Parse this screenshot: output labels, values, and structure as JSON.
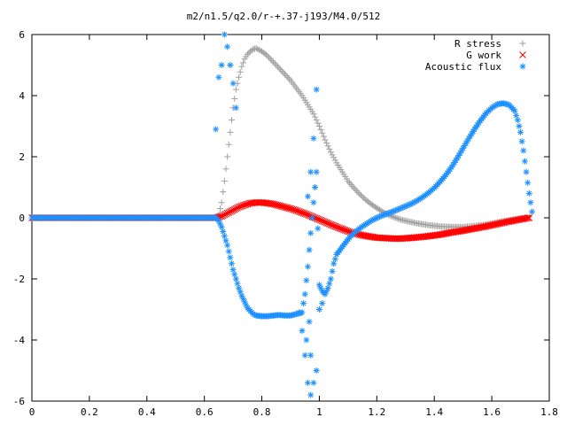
{
  "chart_data": {
    "type": "scatter",
    "title": "m2/n1.5/q2.0/r-+.37-j193/M4.0/512",
    "xlabel": "",
    "ylabel": "",
    "xlim": [
      0,
      1.8
    ],
    "ylim": [
      -6,
      6
    ],
    "x_ticks": [
      "0",
      "0.2",
      "0.4",
      "0.6",
      "0.8",
      "1",
      "1.2",
      "1.4",
      "1.6",
      "1.8"
    ],
    "y_ticks": [
      "6",
      "4",
      "2",
      "0",
      "-2",
      "-4",
      "-6"
    ],
    "grid": false,
    "legend_position": "top-right",
    "series": [
      {
        "name": "R stress",
        "marker": "plus",
        "color": "#a0a0a0",
        "points": [
          [
            0.0,
            0
          ],
          [
            0.1,
            0
          ],
          [
            0.2,
            0
          ],
          [
            0.3,
            0
          ],
          [
            0.4,
            0
          ],
          [
            0.5,
            0
          ],
          [
            0.6,
            0
          ],
          [
            0.64,
            0
          ],
          [
            0.65,
            0.1
          ],
          [
            0.66,
            0.5
          ],
          [
            0.67,
            1.2
          ],
          [
            0.68,
            2.0
          ],
          [
            0.69,
            2.8
          ],
          [
            0.7,
            3.6
          ],
          [
            0.71,
            4.2
          ],
          [
            0.72,
            4.6
          ],
          [
            0.73,
            4.95
          ],
          [
            0.74,
            5.2
          ],
          [
            0.75,
            5.35
          ],
          [
            0.76,
            5.45
          ],
          [
            0.77,
            5.52
          ],
          [
            0.78,
            5.55
          ],
          [
            0.79,
            5.5
          ],
          [
            0.8,
            5.45
          ],
          [
            0.82,
            5.3
          ],
          [
            0.84,
            5.1
          ],
          [
            0.86,
            4.9
          ],
          [
            0.88,
            4.7
          ],
          [
            0.9,
            4.5
          ],
          [
            0.92,
            4.25
          ],
          [
            0.94,
            4.0
          ],
          [
            0.96,
            3.7
          ],
          [
            0.98,
            3.4
          ],
          [
            1.0,
            3.0
          ],
          [
            1.02,
            2.55
          ],
          [
            1.04,
            2.15
          ],
          [
            1.06,
            1.8
          ],
          [
            1.08,
            1.5
          ],
          [
            1.1,
            1.2
          ],
          [
            1.12,
            0.98
          ],
          [
            1.14,
            0.78
          ],
          [
            1.16,
            0.6
          ],
          [
            1.18,
            0.45
          ],
          [
            1.2,
            0.32
          ],
          [
            1.22,
            0.2
          ],
          [
            1.24,
            0.1
          ],
          [
            1.26,
            0.02
          ],
          [
            1.28,
            -0.05
          ],
          [
            1.3,
            -0.1
          ],
          [
            1.34,
            -0.18
          ],
          [
            1.38,
            -0.24
          ],
          [
            1.42,
            -0.28
          ],
          [
            1.46,
            -0.3
          ],
          [
            1.5,
            -0.3
          ],
          [
            1.54,
            -0.27
          ],
          [
            1.58,
            -0.22
          ],
          [
            1.62,
            -0.15
          ],
          [
            1.66,
            -0.08
          ],
          [
            1.7,
            -0.02
          ],
          [
            1.73,
            0.02
          ]
        ]
      },
      {
        "name": "G work",
        "marker": "cross",
        "color": "#ff0000",
        "points": [
          [
            0.0,
            0
          ],
          [
            0.1,
            0
          ],
          [
            0.2,
            0
          ],
          [
            0.3,
            0
          ],
          [
            0.4,
            0
          ],
          [
            0.5,
            0
          ],
          [
            0.6,
            0
          ],
          [
            0.64,
            0
          ],
          [
            0.66,
            0.05
          ],
          [
            0.68,
            0.15
          ],
          [
            0.7,
            0.25
          ],
          [
            0.72,
            0.35
          ],
          [
            0.74,
            0.42
          ],
          [
            0.76,
            0.48
          ],
          [
            0.78,
            0.5
          ],
          [
            0.8,
            0.5
          ],
          [
            0.82,
            0.48
          ],
          [
            0.84,
            0.45
          ],
          [
            0.86,
            0.4
          ],
          [
            0.88,
            0.35
          ],
          [
            0.9,
            0.3
          ],
          [
            0.92,
            0.24
          ],
          [
            0.94,
            0.17
          ],
          [
            0.96,
            0.1
          ],
          [
            0.98,
            0.02
          ],
          [
            1.0,
            -0.06
          ],
          [
            1.02,
            -0.14
          ],
          [
            1.04,
            -0.22
          ],
          [
            1.06,
            -0.3
          ],
          [
            1.08,
            -0.37
          ],
          [
            1.1,
            -0.44
          ],
          [
            1.12,
            -0.5
          ],
          [
            1.14,
            -0.55
          ],
          [
            1.16,
            -0.59
          ],
          [
            1.18,
            -0.62
          ],
          [
            1.2,
            -0.65
          ],
          [
            1.22,
            -0.66
          ],
          [
            1.24,
            -0.67
          ],
          [
            1.26,
            -0.68
          ],
          [
            1.28,
            -0.68
          ],
          [
            1.3,
            -0.67
          ],
          [
            1.34,
            -0.64
          ],
          [
            1.38,
            -0.6
          ],
          [
            1.42,
            -0.55
          ],
          [
            1.46,
            -0.48
          ],
          [
            1.5,
            -0.42
          ],
          [
            1.54,
            -0.35
          ],
          [
            1.58,
            -0.28
          ],
          [
            1.62,
            -0.2
          ],
          [
            1.66,
            -0.12
          ],
          [
            1.7,
            -0.05
          ],
          [
            1.73,
            0.0
          ]
        ]
      },
      {
        "name": "Acoustic flux",
        "marker": "star",
        "color": "#1e90ff",
        "points": [
          [
            0.0,
            0
          ],
          [
            0.1,
            0
          ],
          [
            0.2,
            0
          ],
          [
            0.3,
            0
          ],
          [
            0.4,
            0
          ],
          [
            0.5,
            0
          ],
          [
            0.6,
            0
          ],
          [
            0.64,
            0
          ],
          [
            0.65,
            -0.1
          ],
          [
            0.66,
            -0.3
          ],
          [
            0.67,
            -0.6
          ],
          [
            0.68,
            -0.9
          ],
          [
            0.69,
            -1.3
          ],
          [
            0.7,
            -1.7
          ],
          [
            0.71,
            -2.0
          ],
          [
            0.72,
            -2.3
          ],
          [
            0.73,
            -2.55
          ],
          [
            0.74,
            -2.75
          ],
          [
            0.75,
            -2.95
          ],
          [
            0.76,
            -3.05
          ],
          [
            0.77,
            -3.15
          ],
          [
            0.78,
            -3.2
          ],
          [
            0.8,
            -3.22
          ],
          [
            0.82,
            -3.22
          ],
          [
            0.84,
            -3.2
          ],
          [
            0.86,
            -3.18
          ],
          [
            0.88,
            -3.2
          ],
          [
            0.9,
            -3.2
          ],
          [
            0.92,
            -3.15
          ],
          [
            0.94,
            -3.1
          ],
          [
            0.95,
            -2.5
          ],
          [
            0.96,
            -1.6
          ],
          [
            0.97,
            -0.5
          ],
          [
            0.98,
            0.5
          ],
          [
            0.99,
            1.5
          ],
          [
            1.0,
            -2.2
          ],
          [
            1.01,
            -2.4
          ],
          [
            1.02,
            -2.5
          ],
          [
            1.03,
            -2.3
          ],
          [
            1.04,
            -2.0
          ],
          [
            1.05,
            -1.5
          ],
          [
            1.06,
            -1.2
          ],
          [
            1.08,
            -0.95
          ],
          [
            1.1,
            -0.7
          ],
          [
            1.12,
            -0.5
          ],
          [
            1.14,
            -0.35
          ],
          [
            1.16,
            -0.22
          ],
          [
            1.18,
            -0.1
          ],
          [
            1.2,
            0
          ],
          [
            1.22,
            0.08
          ],
          [
            1.24,
            0.15
          ],
          [
            1.26,
            0.22
          ],
          [
            1.28,
            0.3
          ],
          [
            1.3,
            0.38
          ],
          [
            1.32,
            0.46
          ],
          [
            1.34,
            0.56
          ],
          [
            1.36,
            0.68
          ],
          [
            1.38,
            0.82
          ],
          [
            1.4,
            0.98
          ],
          [
            1.42,
            1.18
          ],
          [
            1.44,
            1.4
          ],
          [
            1.46,
            1.66
          ],
          [
            1.48,
            1.96
          ],
          [
            1.5,
            2.28
          ],
          [
            1.52,
            2.6
          ],
          [
            1.54,
            2.9
          ],
          [
            1.56,
            3.18
          ],
          [
            1.58,
            3.42
          ],
          [
            1.6,
            3.6
          ],
          [
            1.62,
            3.72
          ],
          [
            1.64,
            3.75
          ],
          [
            1.66,
            3.7
          ],
          [
            1.68,
            3.5
          ],
          [
            1.69,
            3.2
          ],
          [
            1.7,
            2.8
          ],
          [
            1.71,
            2.2
          ],
          [
            1.72,
            1.5
          ],
          [
            1.73,
            0.8
          ],
          [
            1.74,
            0.2
          ]
        ]
      },
      {
        "name": "",
        "marker": "star",
        "color": "#1e90ff",
        "points": [
          [
            0.64,
            2.9
          ],
          [
            0.65,
            4.6
          ],
          [
            0.66,
            5.0
          ],
          [
            0.67,
            6.0
          ],
          [
            0.68,
            5.6
          ],
          [
            0.69,
            5.0
          ],
          [
            0.7,
            4.4
          ],
          [
            0.71,
            3.6
          ],
          [
            0.93,
            -3.1
          ],
          [
            0.94,
            -3.7
          ],
          [
            0.95,
            -4.5
          ],
          [
            0.96,
            -5.4
          ],
          [
            0.97,
            -5.8
          ],
          [
            0.97,
            -4.5
          ],
          [
            0.98,
            -5.4
          ],
          [
            0.99,
            -5.0
          ],
          [
            0.96,
            0.7
          ],
          [
            0.97,
            1.5
          ],
          [
            0.98,
            2.6
          ],
          [
            0.99,
            4.2
          ],
          [
            1.0,
            -3.0
          ],
          [
            1.01,
            -2.8
          ],
          [
            0.955,
            -4.0
          ],
          [
            0.965,
            -3.4
          ]
        ]
      }
    ]
  }
}
